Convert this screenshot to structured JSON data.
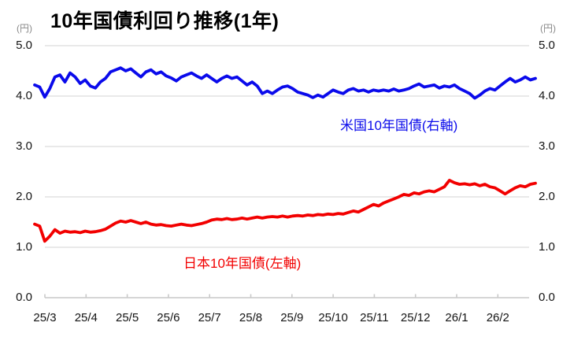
{
  "header": {
    "title": "10年国債利回り推移(1年)"
  },
  "chart_data": {
    "type": "line",
    "title": "10年国債利回り推移(1年)",
    "left_axis_unit": "(円)",
    "right_axis_unit": "(円)",
    "grid": "horizontal",
    "y_range": [
      0.0,
      5.0
    ],
    "y_tick_labels": [
      "5.0",
      "4.0",
      "3.0",
      "2.0",
      "1.0",
      "0.0"
    ],
    "y_tick_values": [
      5.0,
      4.0,
      3.0,
      2.0,
      1.0,
      0.0
    ],
    "x_tick_labels": [
      "25/3",
      "25/4",
      "25/5",
      "25/6",
      "25/7",
      "25/8",
      "25/9",
      "25/10",
      "25/11",
      "25/12",
      "26/1",
      "26/2"
    ],
    "colors": {
      "us": "#0A0AEB",
      "japan": "#F20000",
      "grid": "#DCDCDC",
      "axis": "#C9C9C9"
    },
    "series": [
      {
        "name": "米国10年国債(右軸)",
        "axis": "right",
        "color": "#0A0AEB",
        "values": [
          4.22,
          4.18,
          3.98,
          4.15,
          4.38,
          4.42,
          4.28,
          4.46,
          4.38,
          4.25,
          4.32,
          4.2,
          4.16,
          4.28,
          4.35,
          4.48,
          4.52,
          4.56,
          4.5,
          4.54,
          4.46,
          4.38,
          4.48,
          4.52,
          4.44,
          4.48,
          4.4,
          4.36,
          4.3,
          4.38,
          4.42,
          4.46,
          4.4,
          4.35,
          4.42,
          4.35,
          4.28,
          4.35,
          4.4,
          4.35,
          4.38,
          4.3,
          4.22,
          4.28,
          4.2,
          4.05,
          4.1,
          4.05,
          4.12,
          4.18,
          4.2,
          4.15,
          4.08,
          4.05,
          4.02,
          3.97,
          4.02,
          3.98,
          4.05,
          4.12,
          4.08,
          4.05,
          4.12,
          4.15,
          4.1,
          4.12,
          4.08,
          4.12,
          4.1,
          4.12,
          4.1,
          4.14,
          4.1,
          4.12,
          4.15,
          4.2,
          4.24,
          4.18,
          4.2,
          4.22,
          4.16,
          4.2,
          4.18,
          4.22,
          4.15,
          4.1,
          4.05,
          3.96,
          4.02,
          4.1,
          4.15,
          4.12,
          4.2,
          4.28,
          4.35,
          4.28,
          4.32,
          4.38,
          4.32,
          4.35
        ]
      },
      {
        "name": "日本10年国債(左軸)",
        "axis": "left",
        "color": "#F20000",
        "values": [
          1.46,
          1.42,
          1.12,
          1.22,
          1.35,
          1.28,
          1.32,
          1.3,
          1.31,
          1.29,
          1.32,
          1.3,
          1.31,
          1.33,
          1.36,
          1.42,
          1.48,
          1.52,
          1.5,
          1.53,
          1.5,
          1.47,
          1.5,
          1.46,
          1.44,
          1.45,
          1.43,
          1.42,
          1.44,
          1.46,
          1.44,
          1.43,
          1.45,
          1.47,
          1.5,
          1.54,
          1.56,
          1.55,
          1.57,
          1.55,
          1.56,
          1.58,
          1.56,
          1.58,
          1.6,
          1.58,
          1.6,
          1.61,
          1.6,
          1.62,
          1.6,
          1.62,
          1.63,
          1.62,
          1.64,
          1.63,
          1.65,
          1.64,
          1.66,
          1.65,
          1.67,
          1.66,
          1.69,
          1.72,
          1.7,
          1.75,
          1.8,
          1.85,
          1.82,
          1.88,
          1.92,
          1.96,
          2.0,
          2.05,
          2.03,
          2.08,
          2.06,
          2.1,
          2.12,
          2.1,
          2.15,
          2.2,
          2.33,
          2.28,
          2.25,
          2.26,
          2.24,
          2.26,
          2.22,
          2.25,
          2.2,
          2.18,
          2.12,
          2.06,
          2.12,
          2.18,
          2.22,
          2.2,
          2.25,
          2.27
        ]
      }
    ]
  }
}
